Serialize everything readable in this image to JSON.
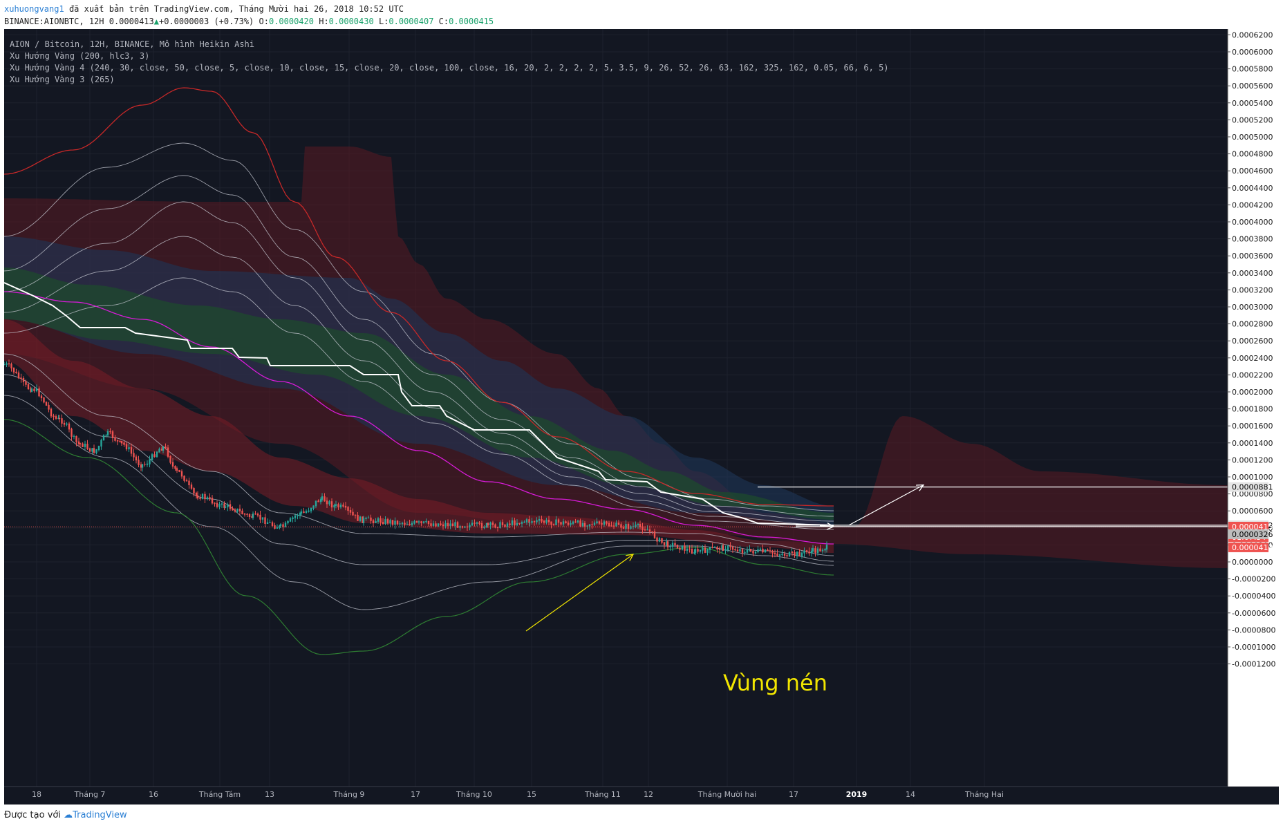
{
  "header": {
    "user": "xuhuongvang1",
    "published": "đã xuất bản trên TradingView.com, Tháng Mười hai 26, 2018 10:52 UTC",
    "symbol_line": "BINANCE:AIONBTC, 12H 0.0000413",
    "change": "+0.0000003 (+0.73%)",
    "o_label": "O:",
    "o_value": "0.0000420",
    "h_label": "H:",
    "h_value": "0.0000430",
    "l_label": "L:",
    "l_value": "0.0000407",
    "c_label": "C:",
    "c_value": "0.0000415"
  },
  "legend": {
    "line1": "AION / Bitcoin, 12H, BINANCE, Mô hình Heikin Ashi",
    "line2": "Xu Hướng Vàng (200, hlc3, 3)",
    "line3": "Xu Hướng Vàng 4 (240, 30, close, 50, close, 5, close, 10, close, 15, close, 20, close, 100, close, 16, 20, 2, 2, 2, 2, 5, 3.5, 9, 26, 52, 26, 63, 162, 325, 162, 0.05, 66, 6, 5)",
    "line4": "Xu Hướng Vàng 3 (265)"
  },
  "annotation": {
    "text": "Vùng nén",
    "color": "#f2e600"
  },
  "footer": {
    "prefix": "Được tạo với",
    "brand": "TradingView"
  },
  "chart_data": {
    "type": "candlestick",
    "chart_style": "Heikin Ashi",
    "y_axis": {
      "ticks": [
        "0.0006200",
        "0.0006000",
        "0.0005800",
        "0.0005600",
        "0.0005400",
        "0.0005200",
        "0.0005000",
        "0.0004800",
        "0.0004600",
        "0.0004400",
        "0.0004200",
        "0.0004000",
        "0.0003800",
        "0.0003600",
        "0.0003400",
        "0.0003200",
        "0.0003000",
        "0.0002800",
        "0.0002600",
        "0.0002400",
        "0.0002200",
        "0.0002000",
        "0.0001800",
        "0.0001600",
        "0.0001400",
        "0.0001200",
        "0.0001000",
        "0.0000800",
        "0.0000600",
        "0.0000400",
        "0.0000200",
        "0.0000000",
        "-0.0000200",
        "-0.0000400",
        "-0.0000600",
        "-0.0000800",
        "-0.0001000",
        "-0.0001200"
      ],
      "range": [
        -0.000124,
        0.000621
      ]
    },
    "x_axis": {
      "ticks": [
        {
          "label": "18",
          "bold": false
        },
        {
          "label": "Tháng 7",
          "bold": false
        },
        {
          "label": "16",
          "bold": false
        },
        {
          "label": "Tháng Tám",
          "bold": false
        },
        {
          "label": "13",
          "bold": false
        },
        {
          "label": "Tháng 9",
          "bold": false
        },
        {
          "label": "17",
          "bold": false
        },
        {
          "label": "Tháng 10",
          "bold": false
        },
        {
          "label": "15",
          "bold": false
        },
        {
          "label": "Tháng 11",
          "bold": false
        },
        {
          "label": "12",
          "bold": false
        },
        {
          "label": "Tháng Mười hai",
          "bold": false
        },
        {
          "label": "17",
          "bold": false
        },
        {
          "label": "2019",
          "bold": true
        },
        {
          "label": "14",
          "bold": false
        },
        {
          "label": "Tháng Hai",
          "bold": false
        }
      ]
    },
    "price_labels": [
      {
        "value": "0.0000881",
        "bg": "#e6e6e6",
        "fg": "#000000"
      },
      {
        "value": "0.0000432",
        "bg": "#e6e6e6",
        "fg": "#000000"
      },
      {
        "value": "0.0000415",
        "bg": "#ef5350",
        "fg": "#ffffff"
      },
      {
        "value": "01:07:34",
        "bg": "#ef5350",
        "fg": "#ffffff"
      },
      {
        "value": "0.0000413",
        "bg": "#ef5350",
        "fg": "#ffffff"
      },
      {
        "value": "0.0000326",
        "bg": "#bdbdbd",
        "fg": "#000000"
      }
    ],
    "horizontal_levels": [
      8.81e-05,
      4.32e-05,
      4.15e-05
    ],
    "colors": {
      "background": "#131722",
      "up_candle": "#26a69a",
      "down_candle": "#ef5350",
      "red_cloud": "#5a1a22",
      "blue_cloud": "#1e3556",
      "green_cloud": "#1d4a2e",
      "trend_white": "#ffffff",
      "trend_magenta": "#d81bd8",
      "trend_red": "#c62828",
      "trend_green": "#2e7d32"
    }
  }
}
